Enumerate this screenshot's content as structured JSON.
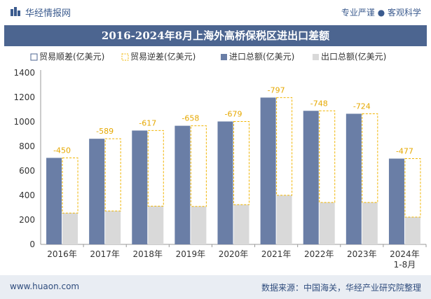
{
  "header": {
    "brand": "华经情报网",
    "tagline": "专业严谨 ● 客观科学"
  },
  "chart_data": {
    "type": "bar",
    "title": "2016-2024年8月上海外高桥保税区进出口差额",
    "categories": [
      "2016年",
      "2017年",
      "2018年",
      "2019年",
      "2020年",
      "2021年",
      "2022年",
      "2023年",
      "2024年\n1-8月"
    ],
    "series": [
      {
        "name": "贸易顺差(亿美元)",
        "values": [
          0,
          0,
          0,
          0,
          0,
          0,
          0,
          0,
          0
        ],
        "color": "#4c6590"
      },
      {
        "name": "贸易逆差(亿美元)",
        "values": [
          -450,
          -589,
          -617,
          -658,
          -679,
          -797,
          -748,
          -724,
          -477
        ],
        "color": "#f0b400"
      },
      {
        "name": "进口总额(亿美元)",
        "values": [
          706,
          862,
          929,
          968,
          1003,
          1198,
          1090,
          1066,
          700
        ],
        "color": "#6a7ea6"
      },
      {
        "name": "出口总额(亿美元)",
        "values": [
          256,
          273,
          312,
          310,
          324,
          401,
          342,
          342,
          223
        ],
        "color": "#d9d9d9"
      }
    ],
    "yticks": [
      0,
      200,
      400,
      600,
      800,
      1000,
      1200,
      1400
    ],
    "ylim": [
      0,
      1400
    ],
    "legend": "top-left",
    "grid": false
  },
  "footer": {
    "site": "www.huaon.com",
    "source": "数据来源：中国海关，华经产业研究院整理"
  }
}
